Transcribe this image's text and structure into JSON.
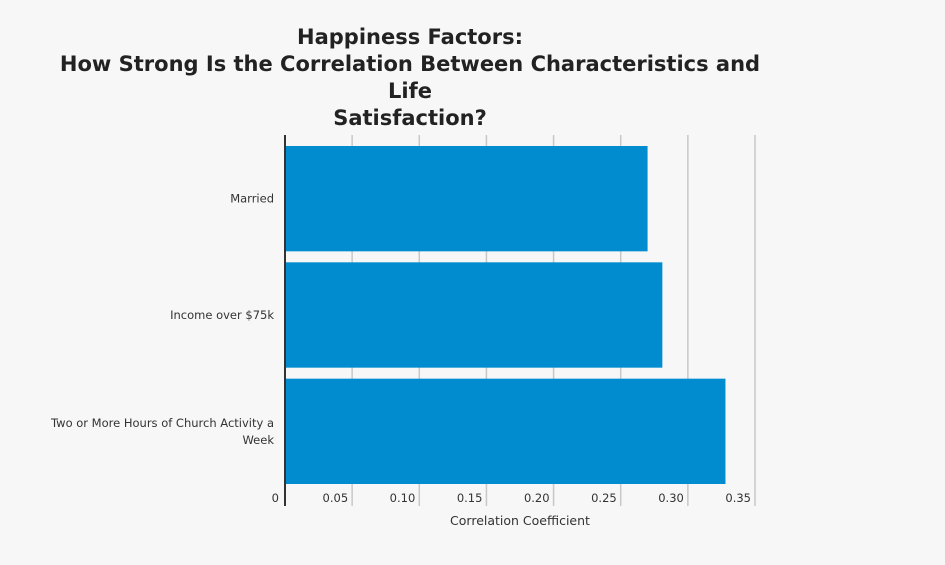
{
  "chart_data": {
    "type": "bar",
    "orientation": "horizontal",
    "title": [
      "Happiness Factors:",
      "How Strong Is the Correlation Between Characteristics and Life",
      "Satisfaction?"
    ],
    "xlabel": "Correlation Coefficient",
    "ylabel": "",
    "categories": [
      [
        "Married"
      ],
      [
        "Income over $75k"
      ],
      [
        "Two or More Hours of Church Activity a",
        "Week"
      ]
    ],
    "values": [
      0.27,
      0.281,
      0.328
    ],
    "xlim": [
      0,
      0.35
    ],
    "xticks": [
      0,
      0.05,
      0.1,
      0.15,
      0.2,
      0.25,
      0.3,
      0.35
    ],
    "xtick_labels": [
      "0",
      "0.05",
      "0.10",
      "0.15",
      "0.20",
      "0.25",
      "0.30",
      "0.35"
    ],
    "grid": true,
    "legend": "none",
    "bar_color": "#008ccf",
    "grid_color": "#c8c8c8",
    "axis_color": "#333333"
  }
}
